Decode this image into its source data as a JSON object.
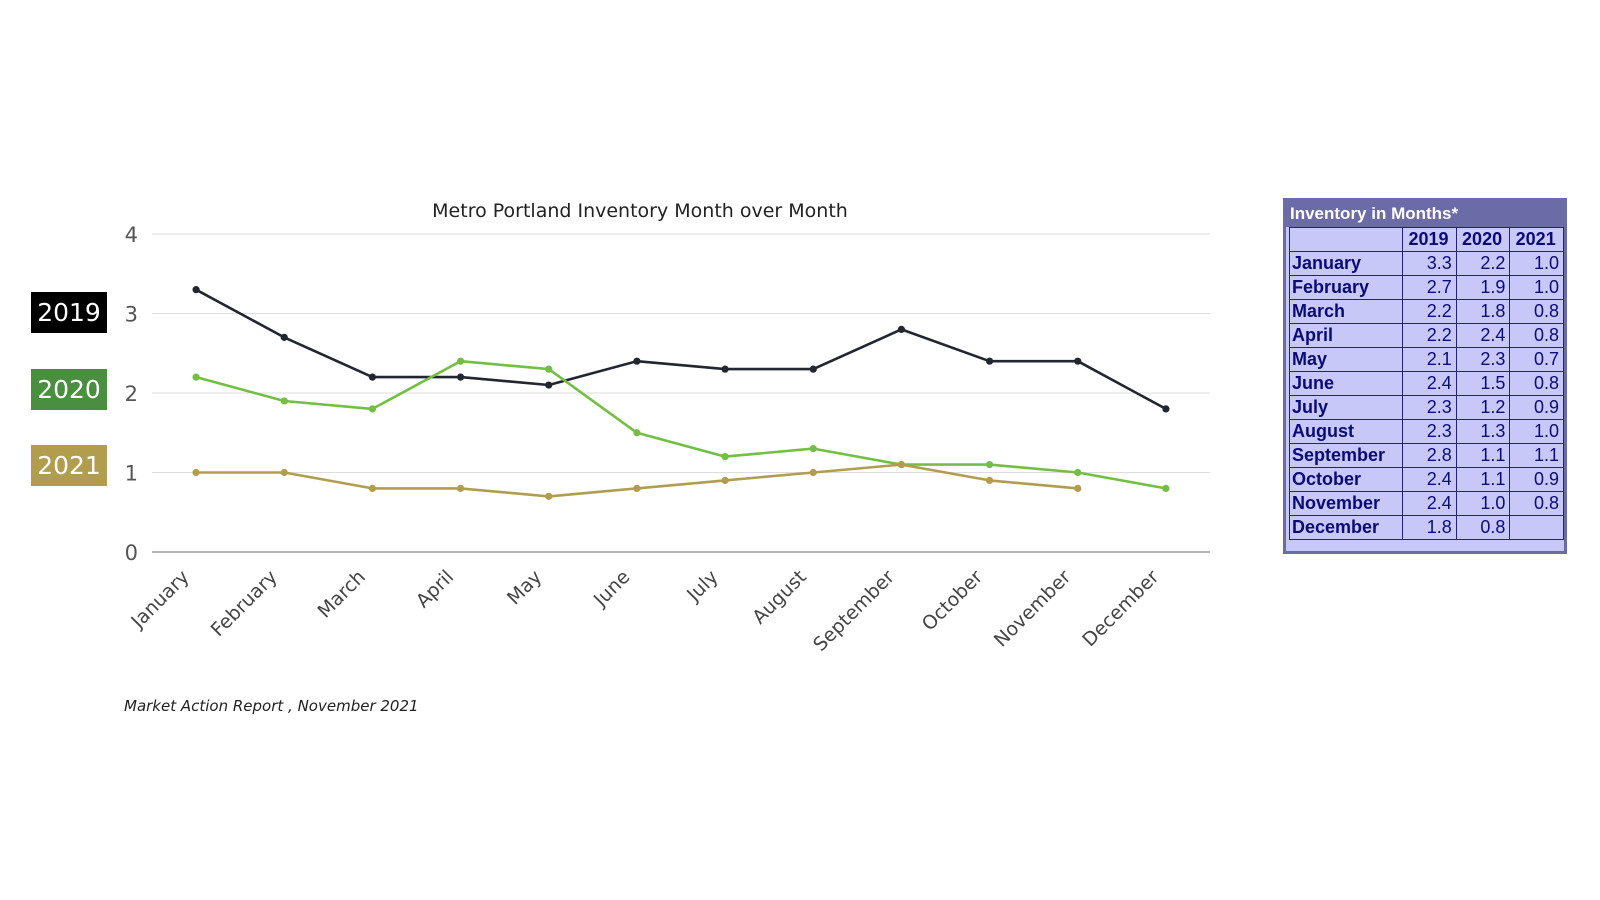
{
  "chart_data": {
    "type": "line",
    "title": "Metro Portland Inventory Month over Month",
    "categories": [
      "January",
      "February",
      "March",
      "April",
      "May",
      "June",
      "July",
      "August",
      "September",
      "October",
      "November",
      "December"
    ],
    "yticks": [
      "0",
      "1",
      "2",
      "3",
      "4"
    ],
    "ylim": [
      0,
      4
    ],
    "grid": true,
    "legend_placement": "left",
    "series": [
      {
        "name": "2019",
        "color": "#222630",
        "values": [
          3.3,
          2.7,
          2.2,
          2.2,
          2.1,
          2.4,
          2.3,
          2.3,
          2.8,
          2.4,
          2.4,
          1.8
        ]
      },
      {
        "name": "2020",
        "color": "#72bf44",
        "values": [
          2.2,
          1.9,
          1.8,
          2.4,
          2.3,
          1.5,
          1.2,
          1.3,
          1.1,
          1.1,
          1.0,
          0.8
        ]
      },
      {
        "name": "2021",
        "color": "#b29d4f",
        "values": [
          1.0,
          1.0,
          0.8,
          0.8,
          0.7,
          0.8,
          0.9,
          1.0,
          1.1,
          0.9,
          0.8,
          null
        ]
      }
    ]
  },
  "legend": [
    {
      "label": "2019",
      "color": "#000000"
    },
    {
      "label": "2020",
      "color": "#4a8f3f"
    },
    {
      "label": "2021",
      "color": "#b29d4f"
    }
  ],
  "source_note": "Market Action Report , November 2021",
  "table": {
    "title": "Inventory in Months*",
    "columns": [
      "",
      "2019",
      "2020",
      "2021"
    ],
    "rows": [
      [
        "January",
        "3.3",
        "2.2",
        "1.0"
      ],
      [
        "February",
        "2.7",
        "1.9",
        "1.0"
      ],
      [
        "March",
        "2.2",
        "1.8",
        "0.8"
      ],
      [
        "April",
        "2.2",
        "2.4",
        "0.8"
      ],
      [
        "May",
        "2.1",
        "2.3",
        "0.7"
      ],
      [
        "June",
        "2.4",
        "1.5",
        "0.8"
      ],
      [
        "July",
        "2.3",
        "1.2",
        "0.9"
      ],
      [
        "August",
        "2.3",
        "1.3",
        "1.0"
      ],
      [
        "September",
        "2.8",
        "1.1",
        "1.1"
      ],
      [
        "October",
        "2.4",
        "1.1",
        "0.9"
      ],
      [
        "November",
        "2.4",
        "1.0",
        "0.8"
      ],
      [
        "December",
        "1.8",
        "0.8",
        ""
      ]
    ]
  }
}
